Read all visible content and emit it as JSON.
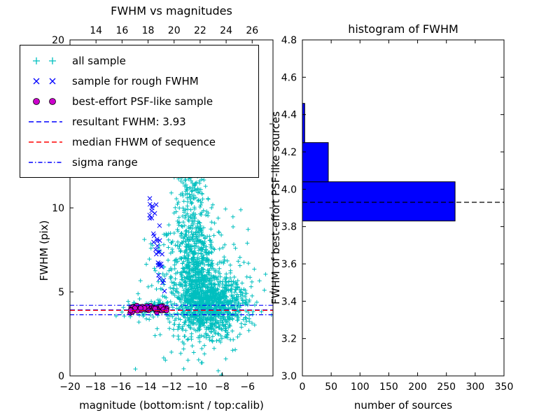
{
  "chart_data": [
    {
      "type": "scatter",
      "title": "FWHM vs magnitudes",
      "xlabel": "magnitude (bottom:isnt / top:calib)",
      "ylabel": "FWHM (pix)",
      "xlim": [
        -20,
        -4
      ],
      "ylim": [
        0,
        20
      ],
      "xticks": {
        "values": [
          -20,
          -18,
          -16,
          -14,
          -12,
          -10,
          -8,
          -6
        ],
        "labels": [
          "−20",
          "−18",
          "−16",
          "−14",
          "−12",
          "−10",
          "−8",
          "−6"
        ]
      },
      "yticks": {
        "values": [
          0,
          5,
          10,
          15,
          20
        ],
        "labels": [
          "0",
          "5",
          "10",
          "15",
          "20"
        ]
      },
      "top_axis": {
        "lim": [
          12,
          27.6
        ],
        "tick_values": [
          14,
          16,
          18,
          20,
          22,
          24,
          26
        ],
        "tick_labels": [
          "14",
          "16",
          "18",
          "20",
          "22",
          "24",
          "26"
        ]
      },
      "series": [
        {
          "name": "all sample",
          "marker": "plus",
          "color": "#00bfbf",
          "seed": 1337,
          "clusters": [
            {
              "cx": -9.4,
              "cy": 4.2,
              "sx": 1.1,
              "sy": 0.9,
              "n": 650
            },
            {
              "cx": -10.1,
              "cy": 6.3,
              "sx": 0.75,
              "sy": 1.5,
              "n": 350
            },
            {
              "cx": -10.4,
              "cy": 9.6,
              "sx": 0.75,
              "sy": 1.7,
              "n": 180
            },
            {
              "cx": -8.1,
              "cy": 4.4,
              "sx": 1.1,
              "sy": 1.0,
              "n": 280
            },
            {
              "cx": -13.7,
              "cy": 4.0,
              "sx": 1.0,
              "sy": 0.3,
              "n": 90
            },
            {
              "cx": -6.7,
              "cy": 4.1,
              "sx": 0.8,
              "sy": 0.7,
              "n": 60
            },
            {
              "cx": -9.9,
              "cy": 5.6,
              "sx": 2.1,
              "sy": 2.3,
              "n": 220
            },
            {
              "cx": -11.4,
              "cy": 2.5,
              "sx": 0.6,
              "sy": 0.5,
              "n": 20
            },
            {
              "cx": -12.4,
              "cy": 6.3,
              "sx": 0.7,
              "sy": 1.4,
              "n": 50
            },
            {
              "cx": -10.6,
              "cy": 12.2,
              "sx": 0.5,
              "sy": 1.0,
              "n": 40
            }
          ]
        },
        {
          "name": "sample for rough FWHM",
          "marker": "x",
          "color": "#0000ff",
          "seed": 7,
          "band": {
            "x0": -13.95,
            "x1": -12.55,
            "y0": 10.6,
            "y1": 5.2,
            "jx": 0.18,
            "jy": 0.5,
            "n": 34
          }
        },
        {
          "name": "best-effort PSF-like sample",
          "marker": "circle",
          "color": "#cc00cc",
          "edge": "#000000",
          "seed": 3,
          "strip": {
            "x0": -15.25,
            "x1": -12.35,
            "cy": 4.02,
            "sy": 0.09,
            "n": 60
          }
        }
      ],
      "lines": [
        {
          "label": "resultant FWHM: 3.93",
          "y": 3.93,
          "style": "dashed",
          "color": "#0000ff"
        },
        {
          "label": "median FHWM of sequence",
          "y": 3.9,
          "style": "dashed",
          "color": "#ff0000"
        },
        {
          "label": "sigma range",
          "y": 4.2,
          "style": "dashdot",
          "color": "#0000ff"
        },
        {
          "label": "sigma range",
          "y": 3.64,
          "style": "dashdot",
          "color": "#0000ff"
        }
      ],
      "legend": {
        "entries": [
          {
            "label": "all sample"
          },
          {
            "label": "sample for rough FWHM"
          },
          {
            "label": "best-effort PSF-like sample"
          },
          {
            "label": "resultant FWHM: 3.93"
          },
          {
            "label": "median FHWM of sequence"
          },
          {
            "label": "sigma range"
          }
        ]
      }
    },
    {
      "type": "bar-horizontal",
      "title": "histogram of FWHM",
      "xlabel": "number of sources",
      "ylabel": "FWHM of best-effort PSF-like sources",
      "xlim": [
        0,
        350
      ],
      "ylim": [
        3.0,
        4.8
      ],
      "xticks": {
        "values": [
          0,
          50,
          100,
          150,
          200,
          250,
          300,
          350
        ],
        "labels": [
          "0",
          "50",
          "100",
          "150",
          "200",
          "250",
          "300",
          "350"
        ]
      },
      "yticks": {
        "values": [
          3.0,
          3.2,
          3.4,
          3.6,
          3.8,
          4.0,
          4.2,
          4.4,
          4.6,
          4.8
        ],
        "labels": [
          "3.0",
          "3.2",
          "3.4",
          "3.6",
          "3.8",
          "4.0",
          "4.2",
          "4.4",
          "4.6",
          "4.8"
        ]
      },
      "bar_color": "#0000ff",
      "bar_edge": "#000000",
      "bins": [
        {
          "y0": 3.83,
          "y1": 4.04,
          "count": 265
        },
        {
          "y0": 4.04,
          "y1": 4.25,
          "count": 45
        },
        {
          "y0": 4.25,
          "y1": 4.46,
          "count": 4
        }
      ],
      "marker_line": {
        "y": 3.93,
        "style": "dashed",
        "color": "#000000"
      }
    }
  ]
}
